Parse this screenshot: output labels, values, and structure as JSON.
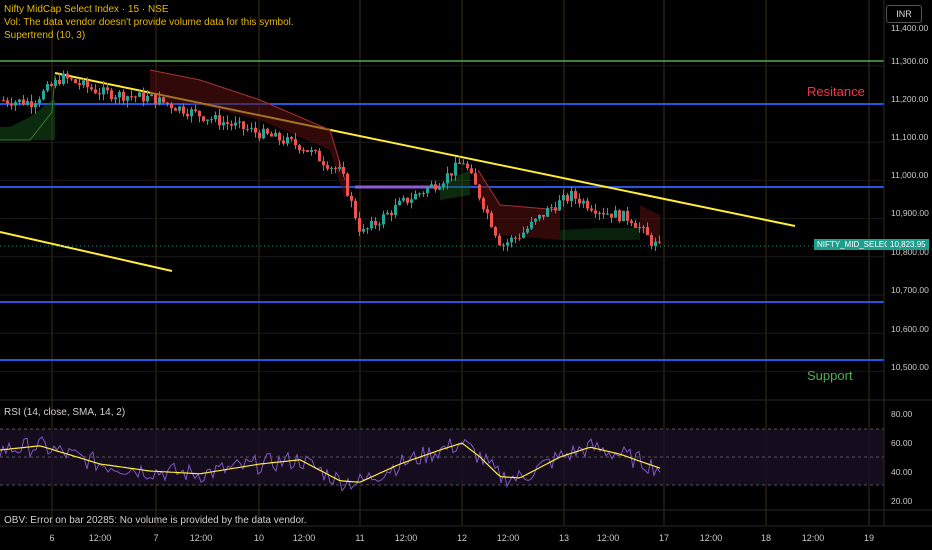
{
  "header": {
    "symbol_line": "Nifty MidCap Select Index · 15 · NSE",
    "vol_line": "Vol: The data vendor doesn't provide volume data for this symbol.",
    "supertrend_line": "Supertrend (10, 3)"
  },
  "currency_button": "INR",
  "price_axis": [
    "11,400.00",
    "11,300.00",
    "11,200.00",
    "11,100.00",
    "11,000.00",
    "10,900.00",
    "10,800.00",
    "10,700.00",
    "10,600.00",
    "10,500.00"
  ],
  "annotations": {
    "resistance": "Resitance",
    "support": "Support"
  },
  "symbol_badge": {
    "name": "NIFTY_MID_SELECT",
    "price": "10,823.95",
    "color": "#1e9e8c"
  },
  "rsi": {
    "label": "RSI (14, close, SMA, 14, 2)",
    "axis": [
      "80.00",
      "60.00",
      "40.00",
      "20.00"
    ]
  },
  "obv": {
    "label": "OBV: Error on bar 20285: No volume is provided by the data vendor."
  },
  "time_axis": [
    "6",
    "12:00",
    "7",
    "12:00",
    "10",
    "12:00",
    "11",
    "12:00",
    "12",
    "12:00",
    "13",
    "12:00",
    "17",
    "12:00",
    "18",
    "12:00",
    "19"
  ],
  "colors": {
    "support_resistance_lines": "#2962ff",
    "top_line": "#4caf50",
    "trendline": "#ffeb3b",
    "up_candle": "#26a69a",
    "down_candle": "#ef5350",
    "rsi_line": "#7e57c2",
    "rsi_ma": "#ffeb3b"
  }
}
